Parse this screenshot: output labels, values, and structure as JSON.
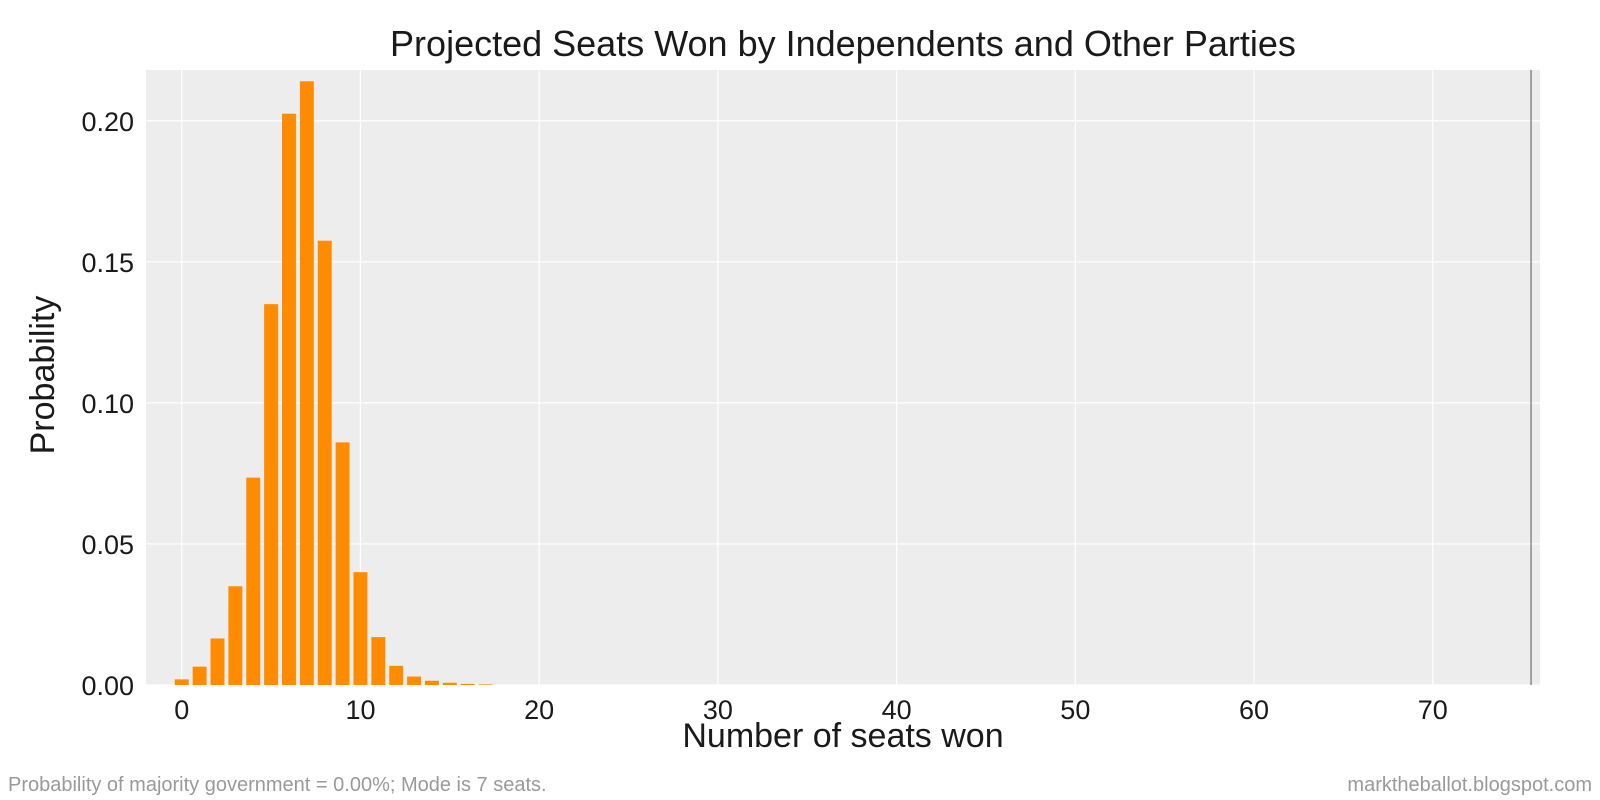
{
  "chart_data": {
    "type": "bar",
    "title": "Projected Seats Won by Independents and Other Parties",
    "xlabel": "Number of seats won",
    "ylabel": "Probability",
    "x": [
      0,
      1,
      2,
      3,
      4,
      5,
      6,
      7,
      8,
      9,
      10,
      11,
      12,
      13,
      14,
      15,
      16,
      17
    ],
    "values": [
      0.002,
      0.0065,
      0.0165,
      0.035,
      0.0735,
      0.135,
      0.2025,
      0.214,
      0.1575,
      0.086,
      0.04,
      0.017,
      0.0068,
      0.003,
      0.0015,
      0.0008,
      0.0004,
      0.0002
    ],
    "xlim": [
      -2,
      76
    ],
    "ylim": [
      0,
      0.218
    ],
    "xticks": [
      0,
      10,
      20,
      30,
      40,
      50,
      60,
      70
    ],
    "yticks": [
      0.0,
      0.05,
      0.1,
      0.15,
      0.2
    ],
    "xtick_labels": [
      "0",
      "10",
      "20",
      "30",
      "40",
      "50",
      "60",
      "70"
    ],
    "ytick_labels": [
      "0.00",
      "0.05",
      "0.10",
      "0.15",
      "0.20"
    ],
    "majority_line_x": 75.5,
    "grid": true,
    "colors": {
      "bar": "#ff8c00",
      "plot_background": "#ededed",
      "grid": "#ffffff",
      "majority_line": "#8a8a8a",
      "footer_text": "#9a9a9a"
    }
  },
  "footer": {
    "left": "Probability of majority government = 0.00%; Mode is 7 seats.",
    "right": "marktheballot.blogspot.com"
  }
}
